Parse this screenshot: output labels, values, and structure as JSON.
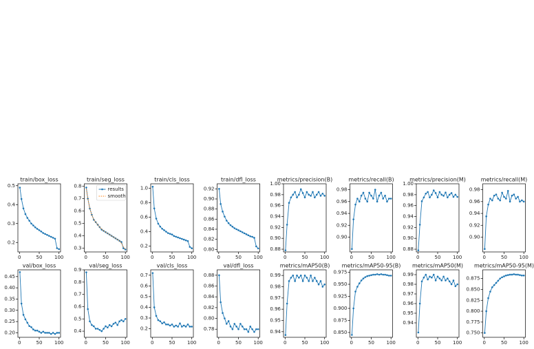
{
  "chart_data": [
    {
      "type": "line",
      "title": "train/box_loss",
      "x": [
        1,
        5,
        10,
        15,
        20,
        25,
        30,
        35,
        40,
        45,
        50,
        55,
        60,
        65,
        70,
        75,
        80,
        85,
        90,
        95,
        100
      ],
      "xlim": [
        -4,
        104
      ],
      "xticks": [
        0,
        50,
        100
      ],
      "ylim": [
        0.15,
        0.51
      ],
      "yticks": [
        0.2,
        0.3,
        0.4,
        0.5
      ],
      "series": [
        {
          "name": "results",
          "color": "#1f77b4",
          "values": [
            0.49,
            0.43,
            0.38,
            0.35,
            0.33,
            0.315,
            0.3,
            0.29,
            0.28,
            0.272,
            0.265,
            0.258,
            0.25,
            0.245,
            0.24,
            0.235,
            0.23,
            0.225,
            0.22,
            0.17,
            0.165
          ]
        }
      ]
    },
    {
      "type": "line",
      "title": "train/seg_loss",
      "x": [
        1,
        5,
        10,
        15,
        20,
        25,
        30,
        35,
        40,
        45,
        50,
        55,
        60,
        65,
        70,
        75,
        80,
        85,
        90,
        95,
        100
      ],
      "xlim": [
        -4,
        104
      ],
      "xticks": [
        0,
        50,
        100
      ],
      "ylim": [
        0.27,
        0.82
      ],
      "yticks": [
        0.3,
        0.4,
        0.5,
        0.6,
        0.7,
        0.8
      ],
      "legend": "upper right",
      "series": [
        {
          "name": "results",
          "color": "#1f77b4",
          "values": [
            0.79,
            0.7,
            0.62,
            0.57,
            0.53,
            0.51,
            0.49,
            0.47,
            0.45,
            0.44,
            0.43,
            0.42,
            0.41,
            0.4,
            0.39,
            0.38,
            0.37,
            0.36,
            0.35,
            0.3,
            0.29
          ]
        },
        {
          "name": "smooth",
          "color": "#ff7f0e",
          "values": [
            0.78,
            0.7,
            0.62,
            0.57,
            0.53,
            0.51,
            0.49,
            0.47,
            0.455,
            0.44,
            0.43,
            0.42,
            0.41,
            0.4,
            0.39,
            0.38,
            0.37,
            0.36,
            0.34,
            0.31,
            0.29
          ]
        }
      ]
    },
    {
      "type": "line",
      "title": "train/cls_loss",
      "x": [
        1,
        5,
        10,
        15,
        20,
        25,
        30,
        35,
        40,
        45,
        50,
        55,
        60,
        65,
        70,
        75,
        80,
        85,
        90,
        95,
        100
      ],
      "xlim": [
        -4,
        104
      ],
      "xticks": [
        0,
        50,
        100
      ],
      "ylim": [
        0.12,
        1.06
      ],
      "yticks": [
        0.2,
        0.4,
        0.6,
        0.8,
        {
          "value": 1.0,
          "label": "1.0"
        }
      ],
      "series": [
        {
          "name": "results",
          "color": "#1f77b4",
          "values": [
            1.02,
            0.72,
            0.58,
            0.51,
            0.47,
            0.44,
            0.42,
            0.4,
            0.38,
            0.37,
            0.36,
            0.34,
            0.33,
            0.32,
            0.31,
            0.3,
            0.29,
            0.28,
            0.27,
            0.19,
            0.17
          ]
        }
      ]
    },
    {
      "type": "line",
      "title": "train/dfl_loss",
      "x": [
        1,
        5,
        10,
        15,
        20,
        25,
        30,
        35,
        40,
        45,
        50,
        55,
        60,
        65,
        70,
        75,
        80,
        85,
        90,
        95,
        100
      ],
      "xlim": [
        -4,
        104
      ],
      "xticks": [
        0,
        50,
        100
      ],
      "ylim": [
        0.795,
        0.93
      ],
      "yticks": [
        {
          "value": 0.8,
          "label": "0.80"
        },
        0.82,
        0.84,
        0.86,
        0.88,
        {
          "value": 0.9,
          "label": "0.90"
        },
        0.92
      ],
      "series": [
        {
          "name": "results",
          "color": "#1f77b4",
          "values": [
            0.92,
            0.89,
            0.875,
            0.865,
            0.857,
            0.852,
            0.848,
            0.845,
            0.842,
            0.84,
            0.838,
            0.836,
            0.834,
            0.832,
            0.83,
            0.828,
            0.826,
            0.825,
            0.823,
            0.806,
            0.802
          ]
        }
      ]
    },
    {
      "type": "line",
      "title": "metrics/precision(B)",
      "x": [
        1,
        5,
        10,
        15,
        20,
        25,
        30,
        35,
        40,
        45,
        50,
        55,
        60,
        65,
        70,
        75,
        80,
        85,
        90,
        95,
        100
      ],
      "xlim": [
        -4,
        104
      ],
      "xticks": [
        0,
        50,
        100
      ],
      "ylim": [
        0.875,
        1.0
      ],
      "yticks": [
        0.88,
        {
          "value": 0.9,
          "label": "0.90"
        },
        0.92,
        0.94,
        0.96,
        0.98,
        {
          "value": 1.0,
          "label": "1.00"
        }
      ],
      "series": [
        {
          "name": "results",
          "color": "#1f77b4",
          "values": [
            0.878,
            0.925,
            0.965,
            0.975,
            0.98,
            0.985,
            0.975,
            0.98,
            0.99,
            0.983,
            0.975,
            0.985,
            0.98,
            0.978,
            0.985,
            0.975,
            0.98,
            0.985,
            0.978,
            0.982,
            0.978
          ]
        }
      ]
    },
    {
      "type": "line",
      "title": "metrics/recall(B)",
      "x": [
        1,
        5,
        10,
        15,
        20,
        25,
        30,
        35,
        40,
        45,
        50,
        55,
        60,
        65,
        70,
        75,
        80,
        85,
        90,
        95,
        100
      ],
      "xlim": [
        -4,
        104
      ],
      "xticks": [
        0,
        50,
        100
      ],
      "ylim": [
        0.875,
        0.99
      ],
      "yticks": [
        {
          "value": 0.9,
          "label": "0.90"
        },
        0.92,
        0.94,
        0.96,
        0.98
      ],
      "series": [
        {
          "name": "results",
          "color": "#1f77b4",
          "values": [
            0.88,
            0.93,
            0.955,
            0.965,
            0.96,
            0.97,
            0.975,
            0.965,
            0.96,
            0.975,
            0.97,
            0.965,
            0.98,
            0.96,
            0.97,
            0.975,
            0.965,
            0.97,
            0.96,
            0.965,
            0.965
          ]
        }
      ]
    },
    {
      "type": "line",
      "title": "metrics/precision(M)",
      "x": [
        1,
        5,
        10,
        15,
        20,
        25,
        30,
        35,
        40,
        45,
        50,
        55,
        60,
        65,
        70,
        75,
        80,
        85,
        90,
        95,
        100
      ],
      "xlim": [
        -4,
        104
      ],
      "xticks": [
        0,
        50,
        100
      ],
      "ylim": [
        0.875,
        1.0
      ],
      "yticks": [
        0.88,
        {
          "value": 0.9,
          "label": "0.90"
        },
        0.92,
        0.94,
        0.96,
        0.98,
        {
          "value": 1.0,
          "label": "1.00"
        }
      ],
      "series": [
        {
          "name": "results",
          "color": "#1f77b4",
          "values": [
            0.878,
            0.925,
            0.968,
            0.975,
            0.982,
            0.985,
            0.975,
            0.98,
            0.988,
            0.983,
            0.975,
            0.985,
            0.98,
            0.978,
            0.984,
            0.975,
            0.98,
            0.983,
            0.976,
            0.98,
            0.976
          ]
        }
      ]
    },
    {
      "type": "line",
      "title": "metrics/recall(M)",
      "x": [
        1,
        5,
        10,
        15,
        20,
        25,
        30,
        35,
        40,
        45,
        50,
        55,
        60,
        65,
        70,
        75,
        80,
        85,
        90,
        95,
        100
      ],
      "xlim": [
        -4,
        104
      ],
      "xticks": [
        0,
        50,
        100
      ],
      "ylim": [
        0.875,
        0.99
      ],
      "yticks": [
        {
          "value": 0.9,
          "label": "0.90"
        },
        0.92,
        0.94,
        0.96,
        0.98
      ],
      "series": [
        {
          "name": "results",
          "color": "#1f77b4",
          "values": [
            0.88,
            0.935,
            0.955,
            0.965,
            0.962,
            0.97,
            0.972,
            0.965,
            0.962,
            0.975,
            0.968,
            0.965,
            0.978,
            0.96,
            0.97,
            0.972,
            0.965,
            0.968,
            0.96,
            0.962,
            0.96
          ]
        }
      ]
    },
    {
      "type": "line",
      "title": "val/box_loss",
      "x": [
        1,
        5,
        10,
        15,
        20,
        25,
        30,
        35,
        40,
        45,
        50,
        55,
        60,
        65,
        70,
        75,
        80,
        85,
        90,
        95,
        100
      ],
      "xlim": [
        -4,
        104
      ],
      "xticks": [
        0,
        50,
        100
      ],
      "ylim": [
        0.18,
        0.48
      ],
      "yticks": [
        {
          "value": 0.2,
          "label": "0.20"
        },
        0.25,
        {
          "value": 0.3,
          "label": "0.30"
        },
        0.35,
        {
          "value": 0.4,
          "label": "0.40"
        },
        0.45
      ],
      "series": [
        {
          "name": "results",
          "color": "#1f77b4",
          "values": [
            0.47,
            0.33,
            0.28,
            0.26,
            0.245,
            0.23,
            0.225,
            0.215,
            0.21,
            0.21,
            0.205,
            0.2,
            0.205,
            0.2,
            0.2,
            0.2,
            0.195,
            0.2,
            0.195,
            0.2,
            0.2
          ]
        }
      ]
    },
    {
      "type": "line",
      "title": "val/seg_loss",
      "x": [
        1,
        5,
        10,
        15,
        20,
        25,
        30,
        35,
        40,
        45,
        50,
        55,
        60,
        65,
        70,
        75,
        80,
        85,
        90,
        95,
        100
      ],
      "xlim": [
        -4,
        104
      ],
      "xticks": [
        0,
        50,
        100
      ],
      "ylim": [
        0.35,
        0.9
      ],
      "yticks": [
        0.4,
        0.5,
        0.6,
        0.7,
        0.8,
        0.9
      ],
      "series": [
        {
          "name": "results",
          "color": "#1f77b4",
          "values": [
            0.88,
            0.58,
            0.48,
            0.45,
            0.44,
            0.42,
            0.42,
            0.41,
            0.4,
            0.42,
            0.44,
            0.43,
            0.45,
            0.44,
            0.46,
            0.47,
            0.45,
            0.48,
            0.49,
            0.48,
            0.5
          ]
        }
      ]
    },
    {
      "type": "line",
      "title": "val/cls_loss",
      "x": [
        1,
        5,
        10,
        15,
        20,
        25,
        30,
        35,
        40,
        45,
        50,
        55,
        60,
        65,
        70,
        75,
        80,
        85,
        90,
        95,
        100
      ],
      "xlim": [
        -4,
        104
      ],
      "xticks": [
        0,
        50,
        100
      ],
      "ylim": [
        0.12,
        0.75
      ],
      "yticks": [
        0.2,
        0.3,
        0.4,
        0.5,
        0.6,
        0.7
      ],
      "series": [
        {
          "name": "results",
          "color": "#1f77b4",
          "values": [
            0.72,
            0.4,
            0.32,
            0.28,
            0.27,
            0.25,
            0.26,
            0.24,
            0.24,
            0.23,
            0.24,
            0.22,
            0.23,
            0.22,
            0.25,
            0.22,
            0.23,
            0.22,
            0.24,
            0.22,
            0.22
          ]
        }
      ]
    },
    {
      "type": "line",
      "title": "val/dfl_loss",
      "x": [
        1,
        5,
        10,
        15,
        20,
        25,
        30,
        35,
        40,
        45,
        50,
        55,
        60,
        65,
        70,
        75,
        80,
        85,
        90,
        95,
        100
      ],
      "xlim": [
        -4,
        104
      ],
      "xticks": [
        0,
        50,
        100
      ],
      "ylim": [
        0.765,
        0.89
      ],
      "yticks": [
        0.78,
        {
          "value": 0.8,
          "label": "0.80"
        },
        0.82,
        0.84,
        0.86,
        0.88
      ],
      "series": [
        {
          "name": "results",
          "color": "#1f77b4",
          "values": [
            0.88,
            0.83,
            0.81,
            0.8,
            0.79,
            0.795,
            0.785,
            0.78,
            0.79,
            0.785,
            0.78,
            0.79,
            0.785,
            0.78,
            0.78,
            0.775,
            0.785,
            0.78,
            0.775,
            0.78,
            0.78
          ]
        }
      ]
    },
    {
      "type": "line",
      "title": "metrics/mAP50(B)",
      "x": [
        1,
        5,
        10,
        15,
        20,
        25,
        30,
        35,
        40,
        45,
        50,
        55,
        60,
        65,
        70,
        75,
        80,
        85,
        90,
        95,
        100
      ],
      "xlim": [
        -4,
        104
      ],
      "xticks": [
        0,
        50,
        100
      ],
      "ylim": [
        0.935,
        0.995
      ],
      "yticks": [
        0.94,
        0.95,
        0.96,
        0.97,
        0.98,
        0.99
      ],
      "series": [
        {
          "name": "results",
          "color": "#1f77b4",
          "values": [
            0.937,
            0.965,
            0.985,
            0.988,
            0.99,
            0.985,
            0.99,
            0.988,
            0.99,
            0.985,
            0.99,
            0.988,
            0.985,
            0.99,
            0.985,
            0.988,
            0.985,
            0.982,
            0.985,
            0.98,
            0.982
          ]
        }
      ]
    },
    {
      "type": "line",
      "title": "metrics/mAP50-95(B)",
      "x": [
        1,
        5,
        10,
        15,
        20,
        25,
        30,
        35,
        40,
        45,
        50,
        55,
        60,
        65,
        70,
        75,
        80,
        85,
        90,
        95,
        100
      ],
      "xlim": [
        -4,
        104
      ],
      "xticks": [
        0,
        50,
        100
      ],
      "ylim": [
        0.84,
        0.98
      ],
      "yticks": [
        {
          "value": 0.85,
          "label": "0.850"
        },
        0.875,
        {
          "value": 0.9,
          "label": "0.900"
        },
        0.925,
        {
          "value": 0.95,
          "label": "0.950"
        },
        0.975
      ],
      "series": [
        {
          "name": "results",
          "color": "#1f77b4",
          "values": [
            0.845,
            0.9,
            0.935,
            0.945,
            0.952,
            0.958,
            0.962,
            0.965,
            0.967,
            0.968,
            0.969,
            0.97,
            0.97,
            0.971,
            0.97,
            0.971,
            0.97,
            0.97,
            0.969,
            0.968,
            0.968
          ]
        }
      ]
    },
    {
      "type": "line",
      "title": "metrics/mAP50(M)",
      "x": [
        1,
        5,
        10,
        15,
        20,
        25,
        30,
        35,
        40,
        45,
        50,
        55,
        60,
        65,
        70,
        75,
        80,
        85,
        90,
        95,
        100
      ],
      "xlim": [
        -4,
        104
      ],
      "xticks": [
        0,
        50,
        100
      ],
      "ylim": [
        0.925,
        0.995
      ],
      "yticks": [
        0.94,
        0.95,
        0.96,
        0.97,
        0.98,
        0.99
      ],
      "series": [
        {
          "name": "results",
          "color": "#1f77b4",
          "values": [
            0.93,
            0.96,
            0.983,
            0.987,
            0.99,
            0.985,
            0.988,
            0.987,
            0.99,
            0.984,
            0.988,
            0.986,
            0.984,
            0.988,
            0.984,
            0.986,
            0.983,
            0.98,
            0.984,
            0.978,
            0.98
          ]
        }
      ]
    },
    {
      "type": "line",
      "title": "metrics/mAP50-95(M)",
      "x": [
        1,
        5,
        10,
        15,
        20,
        25,
        30,
        35,
        40,
        45,
        50,
        55,
        60,
        65,
        70,
        75,
        80,
        85,
        90,
        95,
        100
      ],
      "xlim": [
        -4,
        104
      ],
      "xticks": [
        0,
        50,
        100
      ],
      "ylim": [
        0.74,
        0.895
      ],
      "yticks": [
        {
          "value": 0.75,
          "label": "0.750"
        },
        0.775,
        {
          "value": 0.8,
          "label": "0.800"
        },
        0.825,
        {
          "value": 0.85,
          "label": "0.850"
        },
        0.875
      ],
      "series": [
        {
          "name": "results",
          "color": "#1f77b4",
          "values": [
            0.75,
            0.8,
            0.83,
            0.845,
            0.855,
            0.86,
            0.865,
            0.87,
            0.875,
            0.878,
            0.88,
            0.882,
            0.883,
            0.884,
            0.884,
            0.885,
            0.884,
            0.884,
            0.883,
            0.882,
            0.882
          ]
        }
      ]
    }
  ]
}
